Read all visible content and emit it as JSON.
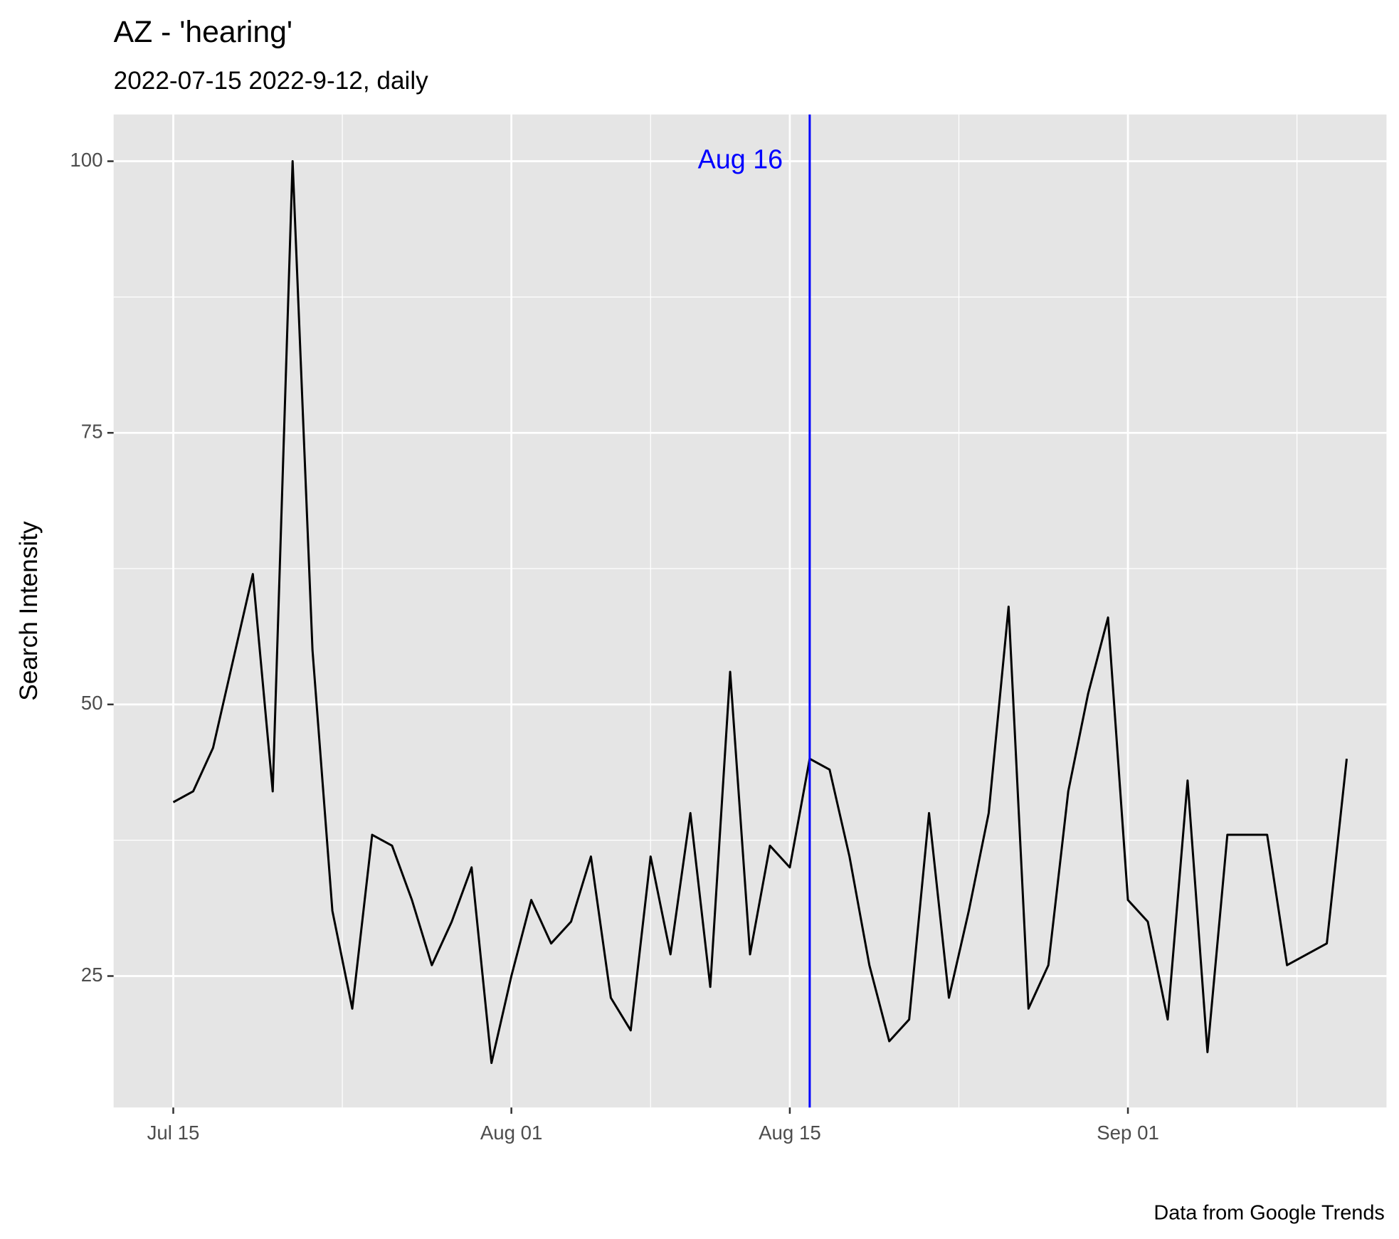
{
  "chart_data": {
    "type": "line",
    "title": "AZ  - 'hearing'",
    "subtitle": "2022-07-15 2022-9-12, daily",
    "y_label": "Search Intensity",
    "caption": "Data from Google Trends",
    "x": [
      "2022-07-15",
      "2022-07-16",
      "2022-07-17",
      "2022-07-18",
      "2022-07-19",
      "2022-07-20",
      "2022-07-21",
      "2022-07-22",
      "2022-07-23",
      "2022-07-24",
      "2022-07-25",
      "2022-07-26",
      "2022-07-27",
      "2022-07-28",
      "2022-07-29",
      "2022-07-30",
      "2022-07-31",
      "2022-08-01",
      "2022-08-02",
      "2022-08-03",
      "2022-08-04",
      "2022-08-05",
      "2022-08-06",
      "2022-08-07",
      "2022-08-08",
      "2022-08-09",
      "2022-08-10",
      "2022-08-11",
      "2022-08-12",
      "2022-08-13",
      "2022-08-14",
      "2022-08-15",
      "2022-08-16",
      "2022-08-17",
      "2022-08-18",
      "2022-08-19",
      "2022-08-20",
      "2022-08-21",
      "2022-08-22",
      "2022-08-23",
      "2022-08-24",
      "2022-08-25",
      "2022-08-26",
      "2022-08-27",
      "2022-08-28",
      "2022-08-29",
      "2022-08-30",
      "2022-08-31",
      "2022-09-01",
      "2022-09-02",
      "2022-09-03",
      "2022-09-04",
      "2022-09-05",
      "2022-09-06",
      "2022-09-07",
      "2022-09-08",
      "2022-09-09",
      "2022-09-10",
      "2022-09-11",
      "2022-09-12"
    ],
    "values": [
      41,
      42,
      46,
      54,
      62,
      42,
      100,
      55,
      31,
      22,
      38,
      37,
      32,
      26,
      30,
      35,
      17,
      25,
      32,
      28,
      30,
      36,
      23,
      20,
      36,
      27,
      40,
      24,
      53,
      27,
      37,
      35,
      45,
      44,
      36,
      26,
      19,
      21,
      40,
      23,
      31,
      40,
      59,
      22,
      26,
      42,
      51,
      58,
      32,
      30,
      21,
      43,
      18,
      38,
      38,
      38,
      26,
      27,
      28,
      45
    ],
    "color": "#000000",
    "xlim": [
      "2022-07-12",
      "2022-09-14"
    ],
    "xticks": [
      {
        "value": "2022-07-15",
        "label": "Jul 15"
      },
      {
        "value": "2022-08-01",
        "label": "Aug 01"
      },
      {
        "value": "2022-08-15",
        "label": "Aug 15"
      },
      {
        "value": "2022-09-01",
        "label": "Sep 01"
      }
    ],
    "ylim": [
      12.9,
      104.3
    ],
    "yticks": [
      25,
      50,
      75,
      100
    ],
    "grid": true,
    "vline": {
      "x": "2022-08-16",
      "label": "Aug 16",
      "label_y": 100,
      "color": "#0000ff"
    }
  }
}
